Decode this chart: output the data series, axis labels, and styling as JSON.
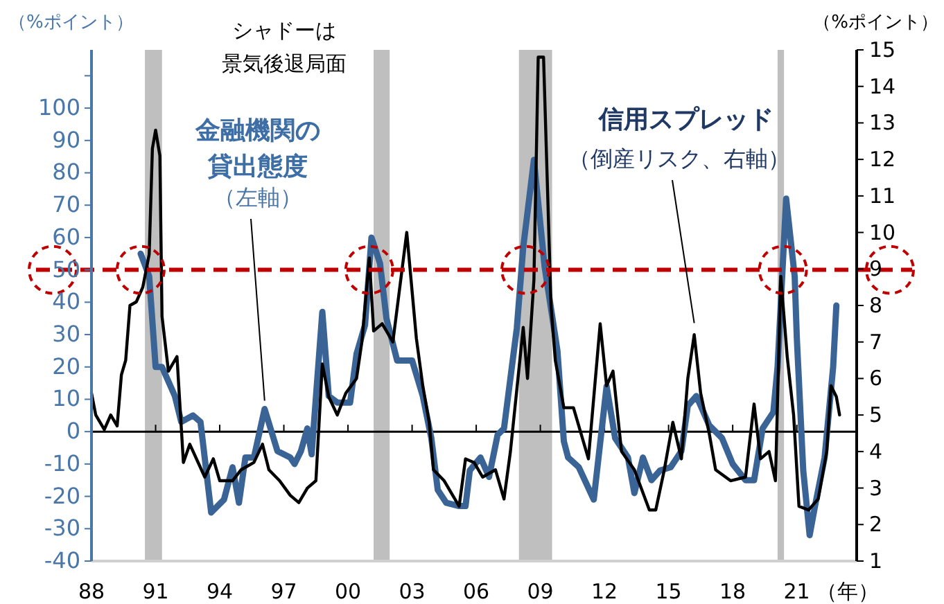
{
  "chart_data": {
    "type": "line",
    "ylabel": "（%ポイント）",
    "y2label": "（%ポイント）",
    "xlabel": "（年）",
    "xlim": [
      1988,
      2023.8
    ],
    "xticks": [
      {
        "value": 1988,
        "label": "88"
      },
      {
        "value": 1991,
        "label": "91"
      },
      {
        "value": 1994,
        "label": "94"
      },
      {
        "value": 1997,
        "label": "97"
      },
      {
        "value": 2000,
        "label": "00"
      },
      {
        "value": 2003,
        "label": "03"
      },
      {
        "value": 2006,
        "label": "06"
      },
      {
        "value": 2009,
        "label": "09"
      },
      {
        "value": 2012,
        "label": "12"
      },
      {
        "value": 2015,
        "label": "15"
      },
      {
        "value": 2018,
        "label": "18"
      },
      {
        "value": 2021,
        "label": "21"
      }
    ],
    "ylim": [
      -40,
      118
    ],
    "yticks": [
      -40,
      -30,
      -20,
      -10,
      0,
      10,
      20,
      30,
      40,
      50,
      60,
      70,
      80,
      90,
      100,
      {
        "value": 110,
        "label": null
      }
    ],
    "y2lim": [
      1,
      15
    ],
    "y2ticks": [
      1,
      2,
      3,
      4,
      5,
      6,
      7,
      8,
      9,
      10,
      11,
      12,
      13,
      14,
      15
    ],
    "grid": false,
    "legend": false,
    "marker": "none",
    "line_style": "solid",
    "series": [
      {
        "name": "金融機関の貸出態度",
        "color": "#3a6496",
        "x": [
          1990.3,
          1990.7,
          1991.0,
          1991.3,
          1991.9,
          1992.2,
          1992.75,
          1993.1,
          1993.6,
          1994.2,
          1994.6,
          1994.9,
          1995.2,
          1995.6,
          1996.1,
          1996.7,
          1997.3,
          1997.5,
          1997.8,
          1998.1,
          1998.3,
          1998.8,
          1999.1,
          1999.5,
          2000.1,
          2000.4,
          2000.8,
          2001.1,
          2001.5,
          2001.8,
          2002.3,
          2003.0,
          2003.5,
          2003.9,
          2004.2,
          2004.6,
          2005.2,
          2005.5,
          2005.7,
          2006.2,
          2006.6,
          2007.0,
          2007.3,
          2007.9,
          2008.2,
          2008.7,
          2009.2,
          2009.8,
          2010.1,
          2010.3,
          2010.8,
          2011.5,
          2012.1,
          2012.5,
          2013.1,
          2013.4,
          2013.8,
          2014.2,
          2014.6,
          2015.1,
          2015.6,
          2015.9,
          2016.3,
          2016.9,
          2017.5,
          2018.0,
          2018.6,
          2019.0,
          2019.4,
          2019.9,
          2020.1,
          2020.5,
          2020.9,
          2021.0,
          2021.3,
          2021.6,
          2021.85,
          2022.3,
          2022.7,
          2022.85
        ],
        "values": [
          55,
          48,
          20,
          20,
          11,
          3,
          5,
          3,
          -25,
          -21,
          -11,
          -22,
          -8,
          -8,
          7,
          -6,
          -8,
          -10,
          -6,
          1,
          -7,
          37,
          11,
          9,
          9,
          24,
          33,
          60,
          52,
          35,
          22,
          22,
          11,
          -2,
          -18,
          -22,
          -23,
          -23,
          -12,
          -8,
          -14,
          -1,
          1,
          32,
          57,
          84,
          51,
          25,
          -3,
          -8,
          -11,
          -21,
          14,
          -2,
          -8,
          -19,
          -8,
          -15,
          -12,
          -11,
          -6,
          8,
          11,
          2,
          -2,
          -10,
          -15,
          -15,
          1,
          6,
          20,
          72,
          48,
          29,
          -12,
          -32,
          -23,
          -8,
          20,
          39
        ]
      },
      {
        "name": "信用スプレッド",
        "color": "#000000",
        "axis": "y2",
        "x": [
          1988.0,
          1988.2,
          1988.6,
          1988.9,
          1989.2,
          1989.4,
          1989.6,
          1989.8,
          1990.1,
          1990.4,
          1990.7,
          1990.85,
          1991.0,
          1991.2,
          1991.3,
          1991.6,
          1992.0,
          1992.3,
          1992.6,
          1993.3,
          1993.7,
          1994.0,
          1994.6,
          1995.0,
          1995.6,
          1996.0,
          1996.3,
          1996.8,
          1997.3,
          1997.7,
          1998.1,
          1998.5,
          1998.8,
          1999.1,
          1999.5,
          1999.9,
          2000.4,
          2000.65,
          2001.0,
          2001.2,
          2001.6,
          2002.1,
          2002.75,
          2003.2,
          2003.5,
          2003.8,
          2004.0,
          2004.5,
          2005.2,
          2005.5,
          2005.9,
          2006.3,
          2006.9,
          2007.3,
          2007.6,
          2008.2,
          2008.4,
          2008.7,
          2008.9,
          2009.15,
          2009.5,
          2009.7,
          2010.1,
          2010.55,
          2011.25,
          2011.8,
          2012.1,
          2012.4,
          2012.8,
          2013.4,
          2014.1,
          2014.4,
          2014.8,
          2015.2,
          2015.6,
          2015.9,
          2016.2,
          2016.5,
          2016.9,
          2017.2,
          2017.9,
          2018.6,
          2019.0,
          2019.3,
          2019.7,
          2020.0,
          2020.25,
          2020.55,
          2020.85,
          2021.1,
          2021.55,
          2022.0,
          2022.4,
          2022.6,
          2022.85,
          2023.0
        ],
        "values": [
          5.6,
          5.0,
          4.6,
          5.0,
          4.7,
          6.1,
          6.5,
          8.0,
          8.1,
          8.5,
          9.4,
          12.3,
          12.8,
          12.1,
          7.7,
          6.2,
          6.6,
          3.7,
          4.2,
          3.3,
          3.8,
          3.2,
          3.2,
          3.5,
          3.7,
          4.2,
          3.5,
          3.2,
          2.8,
          2.6,
          3.0,
          3.2,
          6.4,
          5.5,
          5.0,
          5.6,
          6.0,
          7.0,
          9.3,
          7.3,
          7.5,
          7.0,
          10.0,
          7.1,
          5.8,
          4.8,
          3.5,
          3.2,
          2.5,
          3.8,
          3.7,
          3.3,
          3.5,
          2.7,
          4.0,
          7.4,
          6.0,
          8.7,
          14.8,
          14.8,
          8.0,
          6.5,
          5.2,
          5.2,
          3.8,
          7.5,
          5.8,
          6.2,
          4.0,
          3.5,
          2.4,
          2.4,
          3.5,
          4.8,
          3.8,
          6.0,
          7.2,
          5.6,
          4.5,
          3.5,
          3.2,
          3.3,
          5.3,
          3.8,
          4.0,
          3.2,
          8.8,
          6.6,
          5.0,
          2.5,
          2.4,
          2.7,
          4.0,
          5.8,
          5.5,
          5.0
        ]
      }
    ],
    "bands": [
      {
        "axis": "x",
        "from": 1990.5,
        "to": 1991.3,
        "color": "#bfbfbf"
      },
      {
        "axis": "x",
        "from": 2001.2,
        "to": 2001.95,
        "color": "#bfbfbf"
      },
      {
        "axis": "x",
        "from": 2008.0,
        "to": 2009.55,
        "color": "#bfbfbf"
      },
      {
        "axis": "x",
        "from": 2020.1,
        "to": 2020.4,
        "color": "#bfbfbf"
      }
    ],
    "ref_lines": [
      {
        "axis": "y",
        "value": 50,
        "color": "#c00000",
        "line_style": "dashed"
      }
    ],
    "annotations": [
      "シャドーは",
      "景気後退局面",
      {
        "text": "（左軸）",
        "x": 1996.1,
        "y": 7
      },
      {
        "text": "（倒産リスク、右軸）",
        "x": 2016.2,
        "y": 31
      }
    ]
  }
}
